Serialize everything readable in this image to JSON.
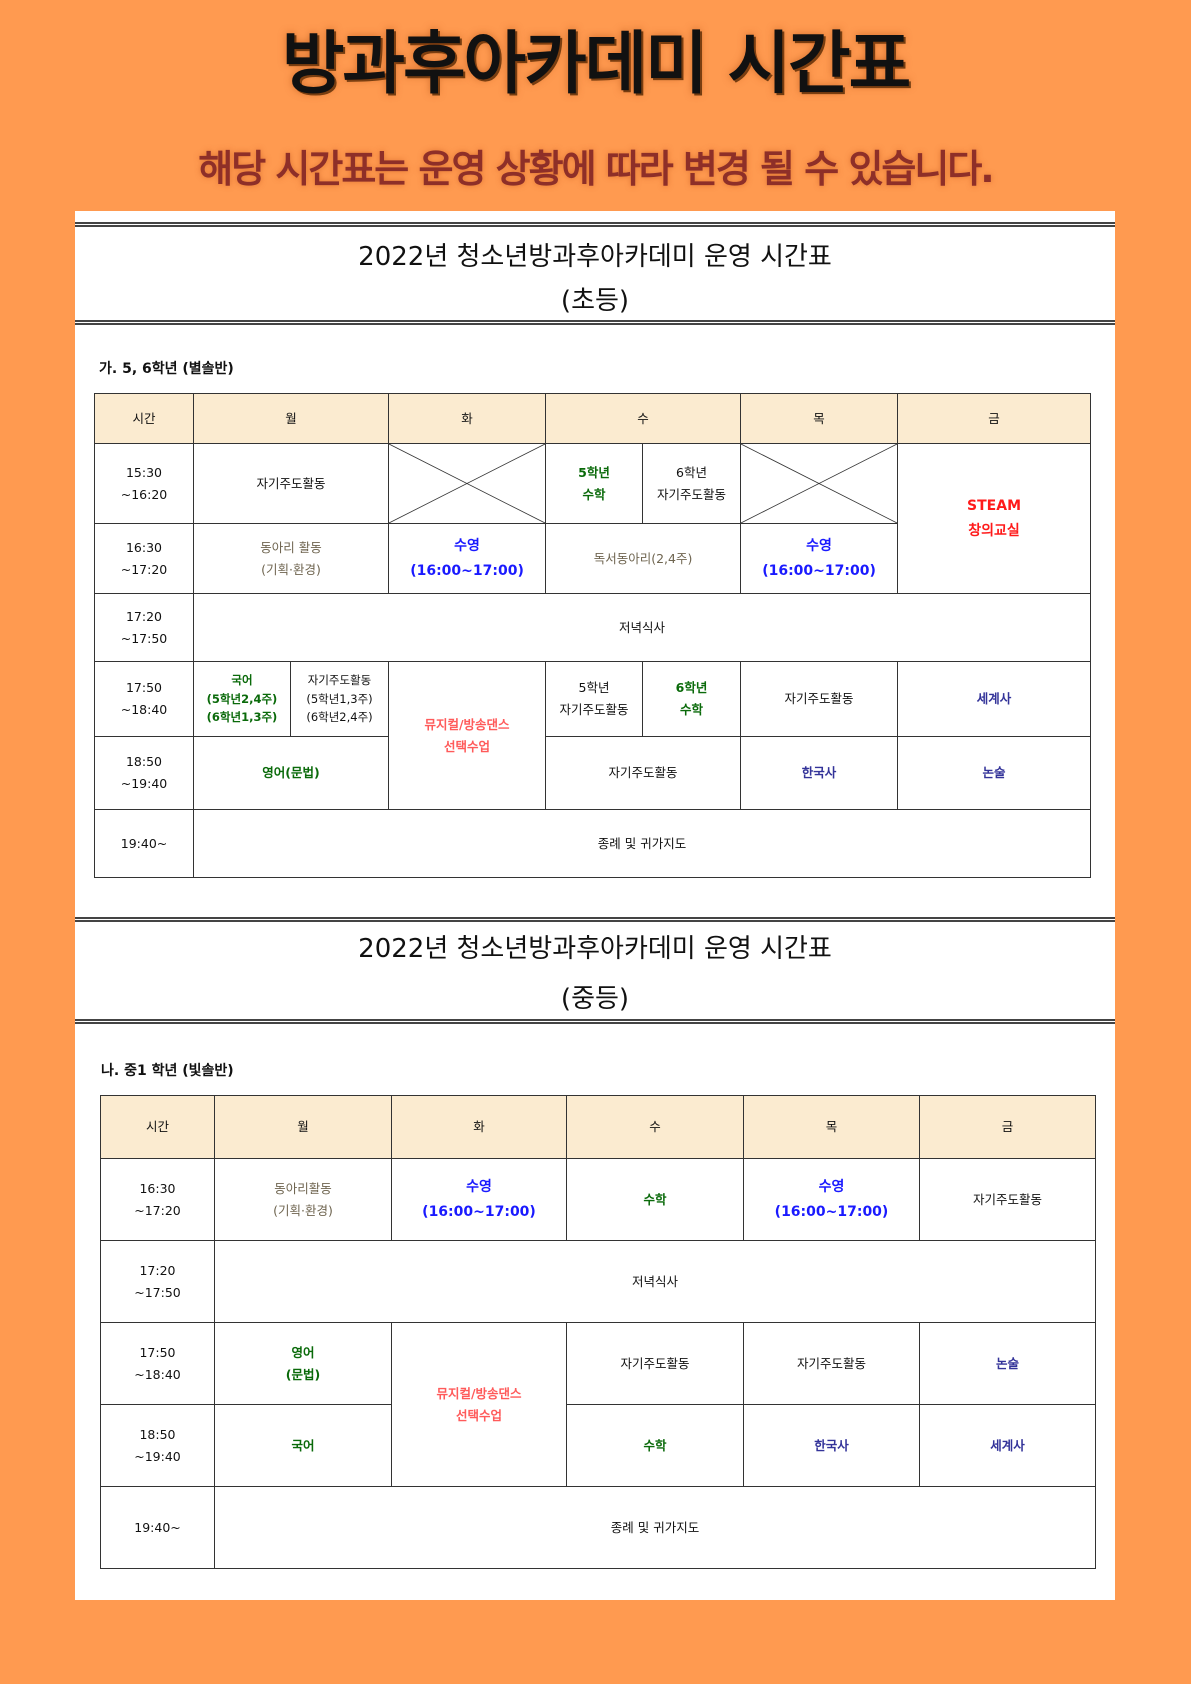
{
  "hero": {
    "title": "방과후아카데미  시간표",
    "subtitle": "해당 시간표는 운영 상황에 따라 변경 될 수 있습니다."
  },
  "headers": [
    "시간",
    "월",
    "화",
    "수",
    "목",
    "금"
  ],
  "elementary": {
    "title": "2022년  청소년방과후아카데미  운영  시간표",
    "subtitle": "(초등)",
    "section": "가.   5,  6학년  (별솔반)",
    "r1": {
      "time": "15:30\n~16:20",
      "mon": "자기주도활동",
      "wed_a": "5학년\n수학",
      "wed_b": "6학년\n자기주도활동",
      "fri": "STEAM\n창의교실"
    },
    "r2": {
      "time": "16:30\n~17:20",
      "mon": "동아리  활동\n(기획·환경)",
      "tue": "수영\n(16:00~17:00)",
      "wed": "독서동아리(2,4주)",
      "thu": "수영\n(16:00~17:00)"
    },
    "r3": {
      "time": "17:20\n~17:50",
      "all": "저녁식사"
    },
    "r4": {
      "time": "17:50\n~18:40",
      "mon_a": "국어\n(5학년2,4주)\n(6학년1,3주)",
      "mon_b": "자기주도활동\n(5학년1,3주)\n(6학년2,4주)",
      "tue": "뮤지컬/방송댄스\n선택수업",
      "wed_a": "5학년\n자기주도활동",
      "wed_b": "6학년\n수학",
      "thu": "자기주도활동",
      "fri": "세계사"
    },
    "r5": {
      "time": "18:50\n~19:40",
      "mon": "영어(문법)",
      "wed": "자기주도활동",
      "thu": "한국사",
      "fri": "논술"
    },
    "r6": {
      "time": "19:40~",
      "all": "종례  및  귀가지도"
    }
  },
  "middle": {
    "title": "2022년  청소년방과후아카데미  운영  시간표",
    "subtitle": "(중등)",
    "section": "나.  중1  학년  (빛솔반)",
    "r1": {
      "time": "16:30\n~17:20",
      "mon": "동아리활동\n(기획·환경)",
      "tue": "수영\n(16:00~17:00)",
      "wed": "수학",
      "thu": "수영\n(16:00~17:00)",
      "fri": "자기주도활동"
    },
    "r2": {
      "time": "17:20\n~17:50",
      "all": "저녁식사"
    },
    "r3": {
      "time": "17:50\n~18:40",
      "mon": "영어\n(문법)",
      "tue": "뮤지컬/방송댄스\n선택수업",
      "wed": "자기주도활동",
      "thu": "자기주도활동",
      "fri": "논술"
    },
    "r4": {
      "time": "18:50\n~19:40",
      "mon": "국어",
      "wed": "수학",
      "thu": "한국사",
      "fri": "세계사"
    },
    "r5": {
      "time": "19:40~",
      "all": "종례  및  귀가지도"
    }
  },
  "colors": {
    "background": "#FF9A50",
    "header_fill": "#FBEBD0",
    "green": "#0A6A0A",
    "blue": "#1A1AFF",
    "red": "#FF1A1A",
    "pink": "#FF5A5A",
    "navy": "#333399"
  }
}
